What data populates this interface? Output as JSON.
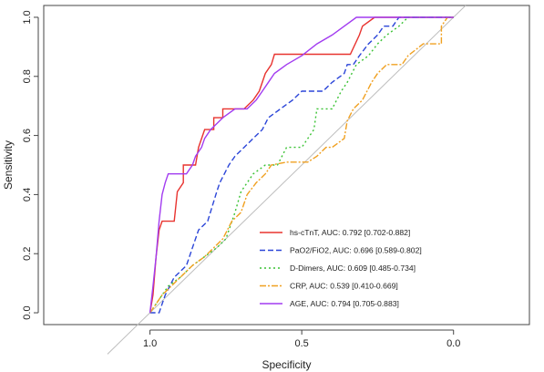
{
  "chart_data": {
    "type": "line",
    "xlabel": "Specificity",
    "ylabel": "Sensitivity",
    "xlim": [
      1.35,
      -0.25
    ],
    "ylim": [
      -0.04,
      1.04
    ],
    "x_axis_reversed": true,
    "x_ticks": [
      1.0,
      0.5,
      0.0
    ],
    "x_tick_labels": [
      "1.0",
      "0.5",
      "0.0"
    ],
    "y_ticks": [
      0.0,
      0.2,
      0.4,
      0.6,
      0.8,
      1.0
    ],
    "y_tick_labels": [
      "0.0",
      "0.2",
      "0.4",
      "0.6",
      "0.8",
      "1.0"
    ],
    "grid": false,
    "reference_line": {
      "from": [
        1.0,
        0.0
      ],
      "to": [
        0.0,
        1.0
      ],
      "color": "#bdbdbd"
    },
    "legend_position": "bottom-right",
    "series": [
      {
        "name": "hs-cTnT, AUC: 0.792 [0.702-0.882]",
        "color": "#e8332f",
        "dash": "",
        "points": [
          [
            1.0,
            0.0
          ],
          [
            0.99,
            0.06
          ],
          [
            0.98,
            0.19
          ],
          [
            0.97,
            0.28
          ],
          [
            0.96,
            0.31
          ],
          [
            0.92,
            0.31
          ],
          [
            0.91,
            0.41
          ],
          [
            0.89,
            0.44
          ],
          [
            0.89,
            0.5
          ],
          [
            0.85,
            0.5
          ],
          [
            0.84,
            0.56
          ],
          [
            0.82,
            0.62
          ],
          [
            0.79,
            0.62
          ],
          [
            0.79,
            0.66
          ],
          [
            0.76,
            0.66
          ],
          [
            0.76,
            0.69
          ],
          [
            0.72,
            0.69
          ],
          [
            0.69,
            0.69
          ],
          [
            0.66,
            0.72
          ],
          [
            0.64,
            0.75
          ],
          [
            0.62,
            0.81
          ],
          [
            0.6,
            0.84
          ],
          [
            0.59,
            0.875
          ],
          [
            0.55,
            0.875
          ],
          [
            0.45,
            0.875
          ],
          [
            0.34,
            0.875
          ],
          [
            0.31,
            0.94
          ],
          [
            0.3,
            0.97
          ],
          [
            0.26,
            1.0
          ],
          [
            0.0,
            1.0
          ]
        ]
      },
      {
        "name": "PaO2/FiO2, AUC: 0.696 [0.589-0.802]",
        "color": "#2b45d8",
        "dash": "6,3",
        "points": [
          [
            1.0,
            0.0
          ],
          [
            0.97,
            0.0
          ],
          [
            0.95,
            0.06
          ],
          [
            0.92,
            0.12
          ],
          [
            0.88,
            0.16
          ],
          [
            0.86,
            0.22
          ],
          [
            0.84,
            0.28
          ],
          [
            0.81,
            0.31
          ],
          [
            0.78,
            0.41
          ],
          [
            0.77,
            0.44
          ],
          [
            0.74,
            0.5
          ],
          [
            0.72,
            0.53
          ],
          [
            0.69,
            0.56
          ],
          [
            0.66,
            0.59
          ],
          [
            0.63,
            0.62
          ],
          [
            0.61,
            0.66
          ],
          [
            0.57,
            0.69
          ],
          [
            0.53,
            0.72
          ],
          [
            0.5,
            0.75
          ],
          [
            0.43,
            0.75
          ],
          [
            0.4,
            0.78
          ],
          [
            0.36,
            0.81
          ],
          [
            0.35,
            0.84
          ],
          [
            0.33,
            0.84
          ],
          [
            0.31,
            0.87
          ],
          [
            0.28,
            0.91
          ],
          [
            0.25,
            0.94
          ],
          [
            0.23,
            0.97
          ],
          [
            0.2,
            0.97
          ],
          [
            0.18,
            1.0
          ],
          [
            0.0,
            1.0
          ]
        ]
      },
      {
        "name": "D-Dimers, AUC: 0.609 [0.485-0.734]",
        "color": "#39c233",
        "dash": "2,3",
        "points": [
          [
            1.0,
            0.0
          ],
          [
            0.96,
            0.06
          ],
          [
            0.94,
            0.09
          ],
          [
            0.9,
            0.12
          ],
          [
            0.86,
            0.16
          ],
          [
            0.82,
            0.19
          ],
          [
            0.78,
            0.22
          ],
          [
            0.75,
            0.25
          ],
          [
            0.72,
            0.34
          ],
          [
            0.7,
            0.41
          ],
          [
            0.66,
            0.47
          ],
          [
            0.62,
            0.5
          ],
          [
            0.58,
            0.5
          ],
          [
            0.55,
            0.56
          ],
          [
            0.5,
            0.56
          ],
          [
            0.46,
            0.62
          ],
          [
            0.45,
            0.69
          ],
          [
            0.4,
            0.69
          ],
          [
            0.37,
            0.75
          ],
          [
            0.35,
            0.78
          ],
          [
            0.32,
            0.84
          ],
          [
            0.28,
            0.87
          ],
          [
            0.25,
            0.91
          ],
          [
            0.22,
            0.94
          ],
          [
            0.18,
            0.97
          ],
          [
            0.15,
            1.0
          ],
          [
            0.0,
            1.0
          ]
        ]
      },
      {
        "name": "CRP, AUC: 0.539 [0.410-0.669]",
        "color": "#f0a020",
        "dash": "7,2,2,2",
        "points": [
          [
            1.0,
            0.0
          ],
          [
            0.98,
            0.03
          ],
          [
            0.96,
            0.06
          ],
          [
            0.93,
            0.09
          ],
          [
            0.9,
            0.12
          ],
          [
            0.86,
            0.16
          ],
          [
            0.82,
            0.19
          ],
          [
            0.79,
            0.22
          ],
          [
            0.76,
            0.25
          ],
          [
            0.73,
            0.31
          ],
          [
            0.7,
            0.34
          ],
          [
            0.68,
            0.4
          ],
          [
            0.65,
            0.44
          ],
          [
            0.62,
            0.47
          ],
          [
            0.6,
            0.5
          ],
          [
            0.55,
            0.51
          ],
          [
            0.48,
            0.51
          ],
          [
            0.45,
            0.53
          ],
          [
            0.42,
            0.56
          ],
          [
            0.4,
            0.56
          ],
          [
            0.36,
            0.59
          ],
          [
            0.35,
            0.65
          ],
          [
            0.33,
            0.69
          ],
          [
            0.3,
            0.72
          ],
          [
            0.27,
            0.78
          ],
          [
            0.25,
            0.81
          ],
          [
            0.22,
            0.84
          ],
          [
            0.17,
            0.84
          ],
          [
            0.15,
            0.87
          ],
          [
            0.1,
            0.91
          ],
          [
            0.04,
            0.91
          ],
          [
            0.04,
            0.97
          ],
          [
            0.02,
            1.0
          ],
          [
            0.0,
            1.0
          ]
        ]
      },
      {
        "name": "AGE, AUC: 0.794 [0.705-0.883]",
        "color": "#a23cf0",
        "dash": "",
        "points": [
          [
            1.0,
            0.0
          ],
          [
            0.99,
            0.09
          ],
          [
            0.98,
            0.19
          ],
          [
            0.97,
            0.31
          ],
          [
            0.96,
            0.4
          ],
          [
            0.95,
            0.44
          ],
          [
            0.94,
            0.47
          ],
          [
            0.88,
            0.47
          ],
          [
            0.86,
            0.5
          ],
          [
            0.85,
            0.53
          ],
          [
            0.83,
            0.56
          ],
          [
            0.82,
            0.59
          ],
          [
            0.8,
            0.62
          ],
          [
            0.78,
            0.64
          ],
          [
            0.76,
            0.66
          ],
          [
            0.72,
            0.69
          ],
          [
            0.68,
            0.69
          ],
          [
            0.65,
            0.72
          ],
          [
            0.63,
            0.75
          ],
          [
            0.61,
            0.78
          ],
          [
            0.59,
            0.81
          ],
          [
            0.55,
            0.84
          ],
          [
            0.5,
            0.87
          ],
          [
            0.45,
            0.91
          ],
          [
            0.4,
            0.94
          ],
          [
            0.36,
            0.97
          ],
          [
            0.32,
            1.0
          ],
          [
            0.0,
            1.0
          ]
        ]
      }
    ]
  }
}
